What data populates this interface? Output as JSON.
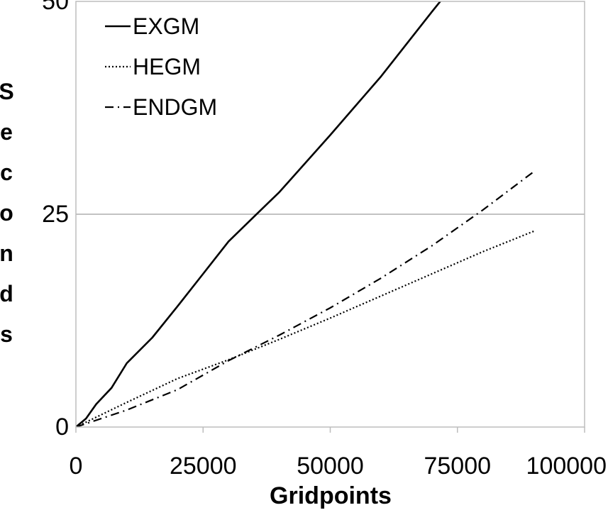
{
  "chart_data": {
    "type": "line",
    "title": "",
    "xlabel": "Gridpoints",
    "ylabel": "Seconds",
    "xlim": [
      0,
      100000
    ],
    "ylim": [
      0,
      50
    ],
    "x_ticks": [
      0,
      25000,
      50000,
      75000,
      100000
    ],
    "x_tick_labels": [
      "0",
      "25000",
      "50000",
      "75000",
      "100000"
    ],
    "y_ticks": [
      0,
      25,
      50
    ],
    "y_tick_labels": [
      "0",
      "25",
      "50"
    ],
    "grid": "horizontal",
    "legend_position": "top-left",
    "series": [
      {
        "name": "EXGM",
        "style": "solid",
        "color": "#000000",
        "points": [
          [
            0,
            0
          ],
          [
            2000,
            1
          ],
          [
            4000,
            2.7
          ],
          [
            7000,
            4.6
          ],
          [
            10000,
            7.5
          ],
          [
            15000,
            10.5
          ],
          [
            20000,
            14.2
          ],
          [
            25000,
            18
          ],
          [
            30000,
            21.8
          ],
          [
            35000,
            24.7
          ],
          [
            40000,
            27.6
          ],
          [
            50000,
            34.3
          ],
          [
            60000,
            41.2
          ],
          [
            70000,
            48.8
          ],
          [
            75000,
            52.5
          ]
        ]
      },
      {
        "name": "HEGM",
        "style": "dotted",
        "color": "#000000",
        "points": [
          [
            0,
            0
          ],
          [
            10000,
            2.9
          ],
          [
            20000,
            5.7
          ],
          [
            30000,
            7.9
          ],
          [
            40000,
            10.3
          ],
          [
            50000,
            12.8
          ],
          [
            60000,
            15.4
          ],
          [
            70000,
            18
          ],
          [
            80000,
            20.6
          ],
          [
            90000,
            23
          ]
        ]
      },
      {
        "name": "ENDGM",
        "style": "dashdot",
        "color": "#000000",
        "points": [
          [
            0,
            0
          ],
          [
            10000,
            2
          ],
          [
            20000,
            4.4
          ],
          [
            30000,
            7.8
          ],
          [
            40000,
            10.8
          ],
          [
            50000,
            14
          ],
          [
            60000,
            17.5
          ],
          [
            70000,
            21.3
          ],
          [
            80000,
            25.5
          ],
          [
            90000,
            30
          ]
        ]
      }
    ]
  }
}
